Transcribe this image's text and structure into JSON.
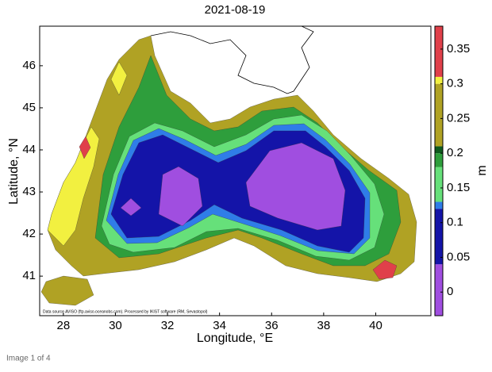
{
  "chart_data": {
    "type": "contour",
    "title": "2021-08-19",
    "x_label": "Longitude, °E",
    "y_label": "Latitude, °N",
    "xlim": [
      27.09,
      42.12
    ],
    "ylim": [
      40.06,
      46.94
    ],
    "xticks": [
      28,
      30,
      32,
      34,
      36,
      38,
      40
    ],
    "yticks": [
      41,
      42,
      43,
      44,
      45,
      46
    ],
    "colorbar": {
      "label": "m",
      "levels": [
        -0.034,
        0.04,
        0.12,
        0.13,
        0.18,
        0.2,
        0.21,
        0.3,
        0.31,
        0.383
      ],
      "colors": [
        "#a04ee0",
        "#1414a8",
        "#2f7de8",
        "#66e07a",
        "#2e9e3c",
        "#0e5a1e",
        "#b0a224",
        "#f2f040",
        "#e0404a"
      ],
      "ticks": [
        0,
        0.05,
        0.1,
        0.15,
        0.2,
        0.25,
        0.3,
        0.35
      ]
    },
    "source": "Data source AVISO (ftp.aviso.oceanobs.com). Processed by IKIST software (RM, Sevastopol)"
  },
  "caption": "Image 1 of 4"
}
